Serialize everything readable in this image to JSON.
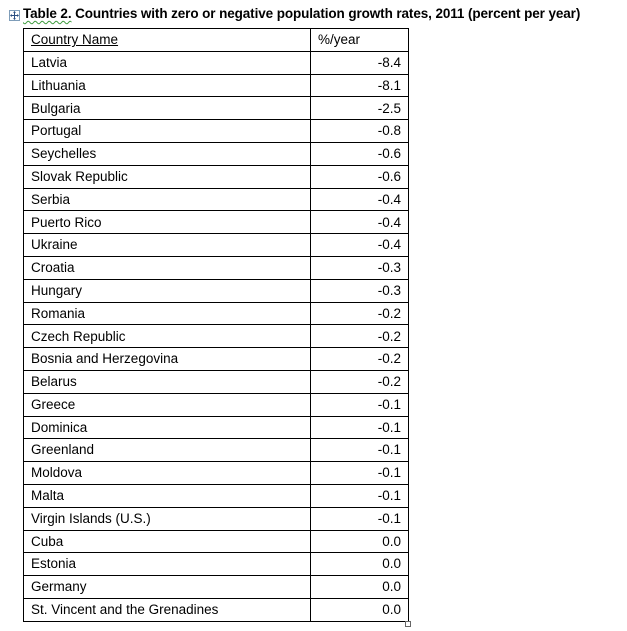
{
  "document": {
    "title_prefix": "Table 2.",
    "title_rest": " Countries with zero or negative population growth rates, 2011 (percent per year)"
  },
  "table": {
    "headers": [
      "Country Name",
      "%/year"
    ],
    "rows": [
      {
        "country": "Latvia",
        "value": "-8.4"
      },
      {
        "country": "Lithuania",
        "value": "-8.1"
      },
      {
        "country": "Bulgaria",
        "value": "-2.5"
      },
      {
        "country": "Portugal",
        "value": "-0.8"
      },
      {
        "country": "Seychelles",
        "value": "-0.6"
      },
      {
        "country": "Slovak Republic",
        "value": "-0.6"
      },
      {
        "country": "Serbia",
        "value": "-0.4"
      },
      {
        "country": "Puerto Rico",
        "value": "-0.4"
      },
      {
        "country": "Ukraine",
        "value": "-0.4"
      },
      {
        "country": "Croatia",
        "value": "-0.3"
      },
      {
        "country": "Hungary",
        "value": "-0.3"
      },
      {
        "country": "Romania",
        "value": "-0.2"
      },
      {
        "country": "Czech Republic",
        "value": "-0.2"
      },
      {
        "country": "Bosnia and Herzegovina",
        "value": "-0.2"
      },
      {
        "country": "Belarus",
        "value": "-0.2"
      },
      {
        "country": "Greece",
        "value": "-0.1"
      },
      {
        "country": "Dominica",
        "value": "-0.1"
      },
      {
        "country": "Greenland",
        "value": "-0.1"
      },
      {
        "country": "Moldova",
        "value": "-0.1"
      },
      {
        "country": "Malta",
        "value": "-0.1"
      },
      {
        "country": "Virgin Islands (U.S.)",
        "value": "-0.1"
      },
      {
        "country": "Cuba",
        "value": "0.0"
      },
      {
        "country": "Estonia",
        "value": "0.0"
      },
      {
        "country": "Germany",
        "value": "0.0"
      },
      {
        "country": "St. Vincent and the Grenadines",
        "value": "0.0"
      }
    ]
  },
  "icons": {
    "move_handle": "table-move-handle-icon",
    "resize_handle": "table-resize-handle-icon"
  }
}
